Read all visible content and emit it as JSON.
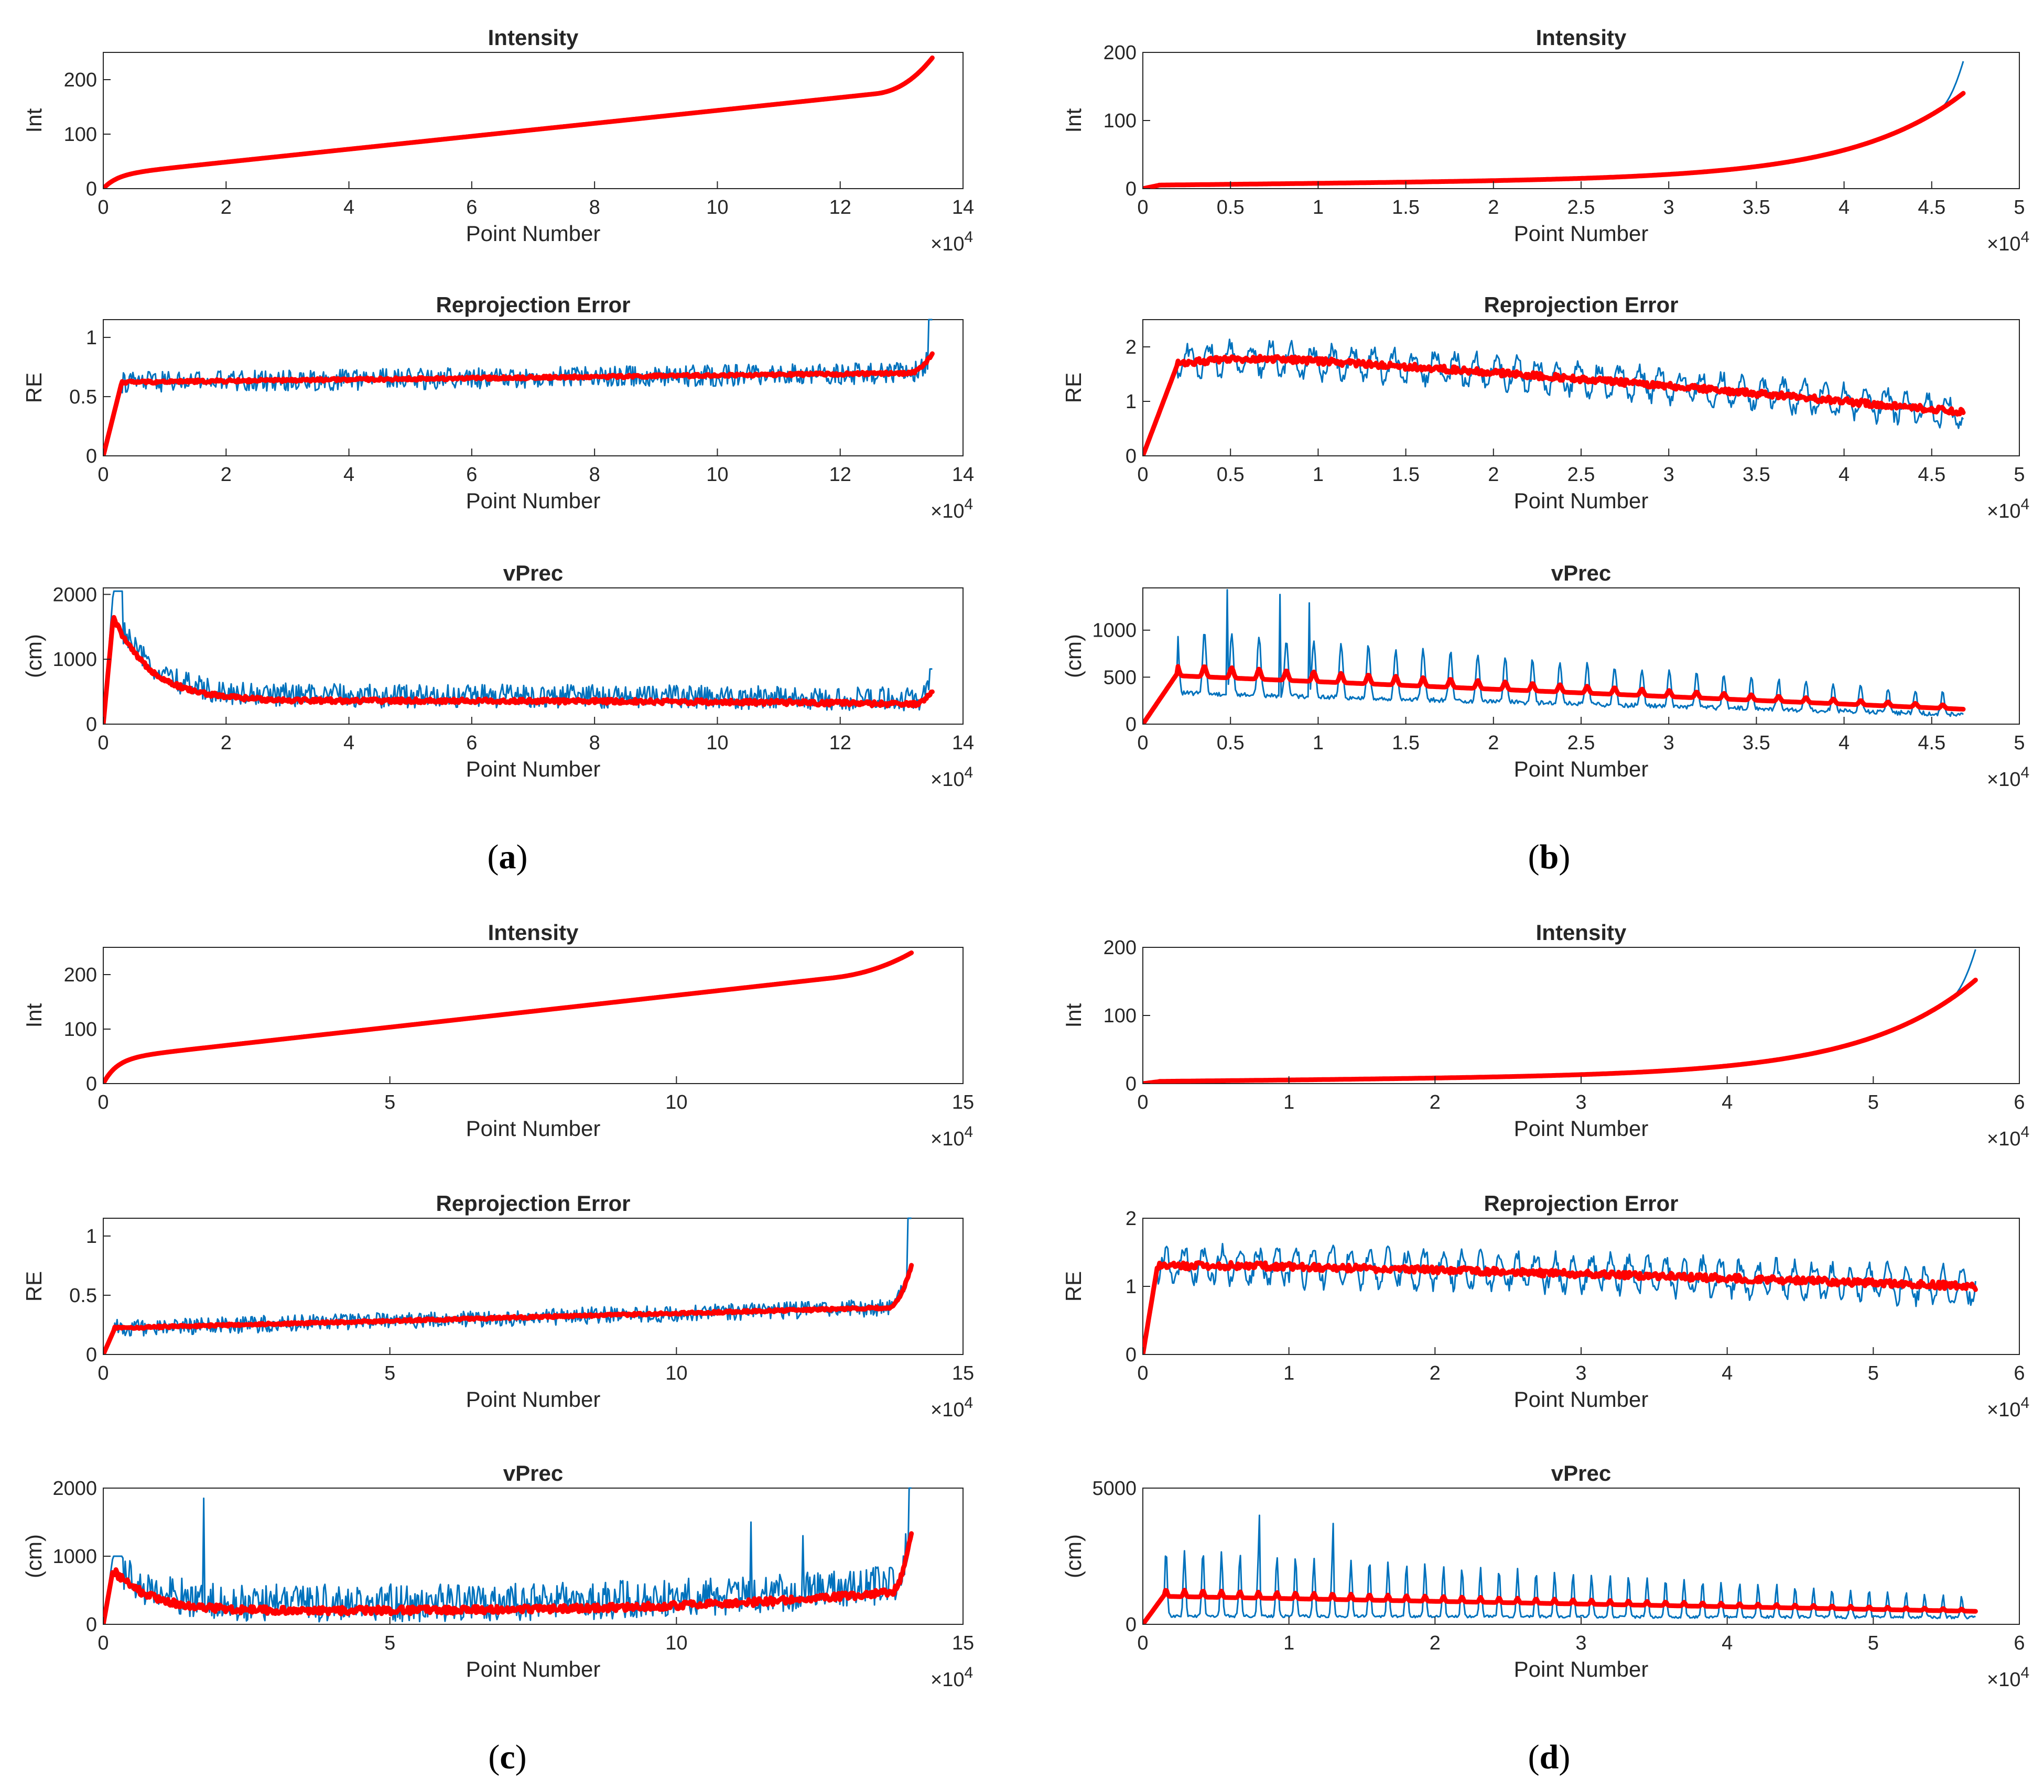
{
  "figure": {
    "panels": [
      {
        "id": "a",
        "label_open": "(",
        "label_letter": "a",
        "label_close": ")"
      },
      {
        "id": "b",
        "label_open": "(",
        "label_letter": "b",
        "label_close": ")"
      },
      {
        "id": "c",
        "label_open": "(",
        "label_letter": "c",
        "label_close": ")"
      },
      {
        "id": "d",
        "label_open": "(",
        "label_letter": "d",
        "label_close": ")"
      }
    ],
    "colors": {
      "raw": "#0072BD",
      "smoothed": "#FF0000",
      "axis": "#262626"
    }
  },
  "chart_data": [
    {
      "panel": "a",
      "type": "line",
      "title": "Intensity",
      "xlabel": "Point Number",
      "ylabel": "Int",
      "x_exponent_base": "×10",
      "x_exponent_power": "4",
      "xlim": [
        0,
        14
      ],
      "ylim": [
        0,
        250
      ],
      "xticks": [
        0,
        2,
        4,
        6,
        8,
        10,
        12,
        14
      ],
      "yticks": [
        0,
        100,
        200
      ],
      "xend": 13.5,
      "series": [
        {
          "shape": "sorted",
          "y0": 0,
          "y1": 240,
          "start": 25,
          "mid": 128,
          "tailrise": 55,
          "knee": 0.93,
          "noise": 0,
          "cycles": 0,
          "widthRaw": 3,
          "widthSmooth": 9
        }
      ]
    },
    {
      "panel": "a",
      "type": "line",
      "title": "Reprojection Error",
      "xlabel": "Point Number",
      "ylabel": "RE",
      "x_exponent_base": "×10",
      "x_exponent_power": "4",
      "xlim": [
        0,
        14
      ],
      "ylim": [
        0,
        1.15
      ],
      "xticks": [
        0,
        2,
        4,
        6,
        8,
        10,
        12,
        14
      ],
      "yticks": [
        0,
        0.5,
        1
      ],
      "xend": 13.5,
      "series": [
        {
          "shape": "flat",
          "y0": 0,
          "ramp": 0.3,
          "start": 0.62,
          "end": 0.7,
          "endspike": 0.86,
          "rawspike": 1.15,
          "noise": 0.1,
          "cycles": 0
        }
      ]
    },
    {
      "panel": "a",
      "type": "line",
      "title": "vPrec",
      "xlabel": "Point Number",
      "ylabel": "(cm)",
      "x_exponent_base": "×10",
      "x_exponent_power": "4",
      "xlim": [
        0,
        14
      ],
      "ylim": [
        0,
        2100
      ],
      "xticks": [
        0,
        2,
        4,
        6,
        8,
        10,
        12,
        14
      ],
      "yticks": [
        0,
        1000,
        2000
      ],
      "xend": 13.5,
      "series": [
        {
          "shape": "decay",
          "peak": 1650,
          "rawpeak": 2050,
          "plateau": 360,
          "end": 300,
          "endspike": 500,
          "rawspike": 850,
          "noise": 230,
          "cycles": 0
        }
      ]
    },
    {
      "panel": "b",
      "type": "line",
      "title": "Intensity",
      "xlabel": "Point Number",
      "ylabel": "Int",
      "x_exponent_base": "×10",
      "x_exponent_power": "4",
      "xlim": [
        0,
        5
      ],
      "ylim": [
        0,
        200
      ],
      "xticks": [
        0,
        0.5,
        1,
        1.5,
        2,
        2.5,
        3,
        3.5,
        4,
        4.5,
        5
      ],
      "yticks": [
        0,
        100,
        200
      ],
      "xend": 4.68,
      "series": [
        {
          "shape": "exp",
          "y0": 0,
          "y1": 128,
          "rawend": 175,
          "start": 5
        }
      ]
    },
    {
      "panel": "b",
      "type": "line",
      "title": "Reprojection Error",
      "xlabel": "Point Number",
      "ylabel": "RE",
      "x_exponent_base": "×10",
      "x_exponent_power": "4",
      "xlim": [
        0,
        5
      ],
      "ylim": [
        0,
        2.5
      ],
      "xticks": [
        0,
        0.5,
        1,
        1.5,
        2,
        2.5,
        3,
        3.5,
        4,
        4.5,
        5
      ],
      "yticks": [
        0,
        1,
        2
      ],
      "xend": 4.68,
      "series": [
        {
          "shape": "hump",
          "y0": 0,
          "ramp": 0.2,
          "start": 1.7,
          "peak": 1.85,
          "end": 0.8,
          "noise": 0.45,
          "cycles": 40
        }
      ]
    },
    {
      "panel": "b",
      "type": "line",
      "title": "vPrec",
      "xlabel": "Point Number",
      "ylabel": "(cm)",
      "x_exponent_base": "×10",
      "x_exponent_power": "4",
      "xlim": [
        0,
        5
      ],
      "ylim": [
        0,
        1450
      ],
      "xticks": [
        0,
        0.5,
        1,
        1.5,
        2,
        2.5,
        3,
        3.5,
        4,
        4.5,
        5
      ],
      "yticks": [
        0,
        500,
        1000
      ],
      "xend": 4.68,
      "series": [
        {
          "shape": "periodic",
          "y0": 0,
          "ramp": 0.2,
          "start": 550,
          "end": 170,
          "amp": 120,
          "rawamp": 500,
          "cycles": 30,
          "spikes": [
            [
              0.48,
              1430
            ],
            [
              0.78,
              1380
            ],
            [
              0.95,
              1290
            ]
          ]
        }
      ]
    },
    {
      "panel": "c",
      "type": "line",
      "title": "Intensity",
      "xlabel": "Point Number",
      "ylabel": "Int",
      "x_exponent_base": "×10",
      "x_exponent_power": "4",
      "xlim": [
        0,
        15
      ],
      "ylim": [
        0,
        250
      ],
      "xticks": [
        0,
        5,
        10,
        15
      ],
      "yticks": [
        0,
        100,
        200
      ],
      "xend": 14.1,
      "series": [
        {
          "shape": "sorted",
          "y0": 0,
          "y1": 240,
          "start": 45,
          "mid": 140,
          "tailrise": 30,
          "knee": 0.9,
          "noise": 0,
          "cycles": 0
        }
      ]
    },
    {
      "panel": "c",
      "type": "line",
      "title": "Reprojection Error",
      "xlabel": "Point Number",
      "ylabel": "RE",
      "x_exponent_base": "×10",
      "x_exponent_power": "4",
      "xlim": [
        0,
        15
      ],
      "ylim": [
        0,
        1.15
      ],
      "xticks": [
        0,
        5,
        10,
        15
      ],
      "yticks": [
        0,
        0.5,
        1
      ],
      "xend": 14.1,
      "series": [
        {
          "shape": "flat",
          "y0": 0,
          "ramp": 0.2,
          "start": 0.22,
          "end": 0.4,
          "endspike": 0.75,
          "rawspike": 1.15,
          "noise": 0.08,
          "cycles": 0
        }
      ]
    },
    {
      "panel": "c",
      "type": "line",
      "title": "vPrec",
      "xlabel": "Point Number",
      "ylabel": "(cm)",
      "x_exponent_base": "×10",
      "x_exponent_power": "4",
      "xlim": [
        0,
        15
      ],
      "ylim": [
        0,
        2000
      ],
      "xticks": [
        0,
        5,
        10,
        15
      ],
      "yticks": [
        0,
        1000,
        2000
      ],
      "xend": 14.1,
      "series": [
        {
          "shape": "decay",
          "peak": 800,
          "rawpeak": 1000,
          "plateau": 200,
          "end": 500,
          "endspike": 1380,
          "rawspike": 2000,
          "noise": 350,
          "cycles": 0,
          "spikes": [
            [
              1.75,
              1850
            ],
            [
              11.3,
              1500
            ],
            [
              12.2,
              1300
            ]
          ]
        }
      ]
    },
    {
      "panel": "d",
      "type": "line",
      "title": "Intensity",
      "xlabel": "Point Number",
      "ylabel": "Int",
      "x_exponent_base": "×10",
      "x_exponent_power": "4",
      "xlim": [
        0,
        6
      ],
      "ylim": [
        0,
        200
      ],
      "xticks": [
        0,
        1,
        2,
        3,
        4,
        5,
        6
      ],
      "yticks": [
        0,
        100,
        200
      ],
      "xend": 5.7,
      "series": [
        {
          "shape": "exp",
          "y0": 0,
          "y1": 140,
          "rawend": 185,
          "start": 3
        }
      ]
    },
    {
      "panel": "d",
      "type": "line",
      "title": "Reprojection Error",
      "xlabel": "Point Number",
      "ylabel": "RE",
      "x_exponent_base": "×10",
      "x_exponent_power": "4",
      "xlim": [
        0,
        6
      ],
      "ylim": [
        0,
        2
      ],
      "xticks": [
        0,
        1,
        2,
        3,
        4,
        5,
        6
      ],
      "yticks": [
        0,
        1,
        2
      ],
      "xend": 5.7,
      "series": [
        {
          "shape": "hump",
          "y0": 0,
          "ramp": 0.1,
          "start": 1.3,
          "peak": 1.32,
          "end": 1.0,
          "noise": 0.4,
          "cycles": 45
        }
      ]
    },
    {
      "panel": "d",
      "type": "line",
      "title": "vPrec",
      "xlabel": "Point Number",
      "ylabel": "(cm)",
      "x_exponent_base": "×10",
      "x_exponent_power": "4",
      "xlim": [
        0,
        6
      ],
      "ylim": [
        0,
        5000
      ],
      "xticks": [
        0,
        1,
        2,
        3,
        4,
        5,
        6
      ],
      "yticks": [
        0,
        5000
      ],
      "xend": 5.7,
      "series": [
        {
          "shape": "periodic",
          "y0": 0,
          "ramp": 0.15,
          "start": 1100,
          "end": 500,
          "amp": 250,
          "rawamp": 1800,
          "cycles": 45,
          "spikes": [
            [
              0.8,
              4000
            ],
            [
              1.3,
              3700
            ]
          ]
        }
      ]
    }
  ]
}
